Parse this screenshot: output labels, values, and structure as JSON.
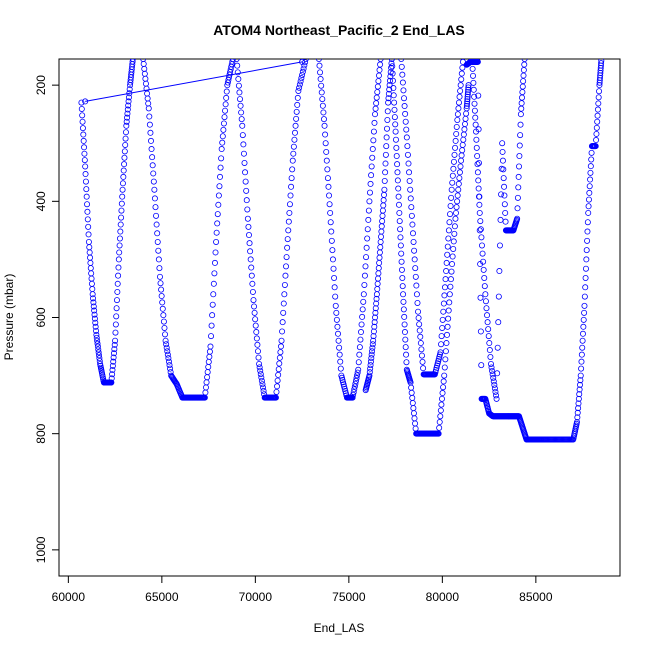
{
  "chart_data": {
    "type": "scatter",
    "title": "ATOM4 Northeast_Pacific_2 End_LAS",
    "xlabel": "End_LAS",
    "ylabel": "Pressure (mbar)",
    "xlim": [
      59500,
      89500
    ],
    "ylim": [
      1045,
      155
    ],
    "y_reversed": true,
    "x_ticks": [
      60000,
      65000,
      70000,
      75000,
      80000,
      85000
    ],
    "x_tick_labels": [
      "60000",
      "65000",
      "70000",
      "75000",
      "80000",
      "85000"
    ],
    "y_ticks": [
      200,
      400,
      600,
      800,
      1000
    ],
    "y_tick_labels": [
      "200",
      "400",
      "600",
      "800",
      "1000"
    ],
    "marker": "open-circle",
    "color": "#0000ff",
    "grid": false,
    "legend": "none",
    "series": [
      {
        "x": [
          60700,
          60900,
          61100,
          61300,
          61500,
          61700,
          61900,
          62100,
          62300,
          62500,
          62700,
          62900,
          63100,
          63300,
          63450
        ],
        "y": [
          230,
          340,
          470,
          560,
          630,
          680,
          712,
          712,
          712,
          640,
          500,
          380,
          270,
          200,
          155
        ]
      },
      {
        "x": [
          60900,
          72500
        ],
        "y": [
          228,
          160
        ]
      },
      {
        "x": [
          64000,
          64300,
          64600,
          64900,
          65200,
          65500,
          65800,
          66100,
          66400,
          66700,
          67000,
          67300,
          67600,
          67900,
          68200,
          68500,
          68800
        ],
        "y": [
          155,
          240,
          380,
          530,
          640,
          700,
          715,
          738,
          738,
          738,
          738,
          738,
          650,
          470,
          310,
          200,
          155
        ]
      },
      {
        "x": [
          69000,
          69300,
          69600,
          69900,
          70200,
          70500,
          70800,
          71100,
          71400,
          71700,
          72000,
          72300,
          72700
        ],
        "y": [
          155,
          270,
          430,
          570,
          680,
          738,
          738,
          738,
          640,
          480,
          330,
          210,
          155
        ]
      },
      {
        "x": [
          73400,
          73700,
          74000,
          74300,
          74600,
          74900,
          75200,
          75500,
          75800,
          76100,
          76400,
          76700
        ],
        "y": [
          155,
          270,
          420,
          580,
          700,
          738,
          738,
          690,
          560,
          400,
          250,
          155
        ]
      },
      {
        "x": [
          75900,
          76100,
          76300,
          76500,
          76700,
          76900,
          77100,
          77300
        ],
        "y": [
          725,
          700,
          640,
          560,
          470,
          380,
          230,
          155
        ]
      },
      {
        "x": [
          77300,
          77500,
          77700,
          77900,
          78100,
          78300,
          78600,
          78900,
          79200,
          79500,
          79800,
          80100,
          80400,
          80700,
          81000,
          81300,
          81400
        ],
        "y": [
          155,
          280,
          420,
          560,
          690,
          712,
          800,
          800,
          800,
          800,
          800,
          700,
          560,
          430,
          330,
          240,
          200
        ]
      },
      {
        "x": [
          77800,
          78100,
          78400,
          78700,
          79000,
          79300,
          79600,
          79900,
          80200,
          80500,
          80800,
          81100
        ],
        "y": [
          155,
          290,
          440,
          590,
          698,
          698,
          698,
          660,
          520,
          380,
          260,
          160
        ]
      },
      {
        "x": [
          81300,
          81500,
          81700,
          81900,
          82100,
          82300,
          82500,
          82700,
          82900,
          83100,
          83300,
          83500,
          83700,
          83900,
          84100,
          84300,
          84500,
          84700,
          84900,
          85100,
          85500,
          86000,
          86500,
          87000,
          87200,
          87400,
          87600,
          87800,
          88000,
          88200,
          88400,
          88500
        ],
        "y": [
          165,
          160,
          160,
          160,
          740,
          740,
          765,
          770,
          770,
          770,
          770,
          770,
          770,
          770,
          770,
          790,
          810,
          810,
          810,
          810,
          810,
          810,
          810,
          810,
          780,
          700,
          580,
          420,
          305,
          305,
          200,
          158
        ]
      },
      {
        "x": [
          81600,
          81800,
          82000,
          82300,
          82600,
          82900,
          83200,
          83400,
          83600,
          83800,
          84000,
          84200,
          84400
        ],
        "y": [
          160,
          280,
          420,
          560,
          680,
          740,
          300,
          450,
          450,
          450,
          430,
          250,
          155
        ]
      }
    ]
  }
}
